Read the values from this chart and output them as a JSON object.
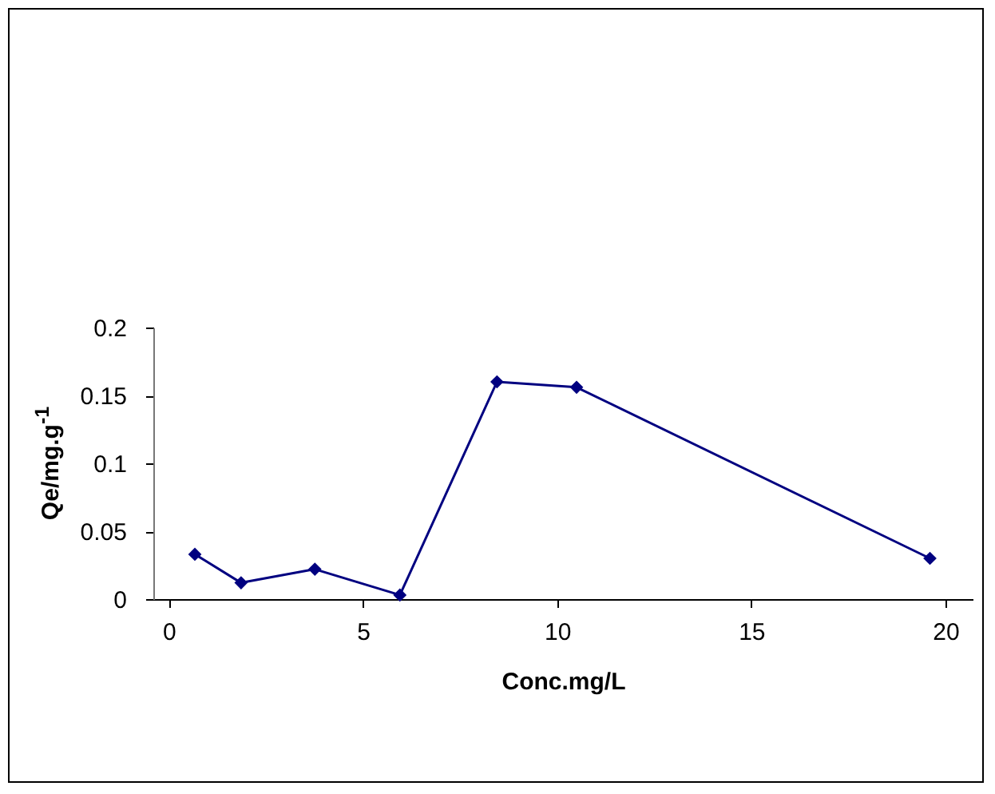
{
  "chart_data": {
    "type": "line",
    "xlabel": "Conc.mg/L",
    "ylabel": "Qe/mg.g$^{-1}$",
    "x": [
      0.67,
      1.86,
      3.76,
      5.95,
      8.45,
      10.5,
      19.6
    ],
    "series": [
      {
        "color": "#000080",
        "values": [
          0.033,
          0.012,
          0.022,
          0.003,
          0.16,
          0.156,
          0.03
        ]
      }
    ],
    "xlim": [
      -0.4,
      20.7
    ],
    "xticks": [
      0,
      5,
      10,
      15,
      20
    ],
    "ylim": [
      0,
      0.2
    ],
    "yticks": [
      0,
      0.05,
      0.1,
      0.15,
      0.2
    ],
    "grid": false,
    "marker": "diamond",
    "line_style": "solid"
  }
}
